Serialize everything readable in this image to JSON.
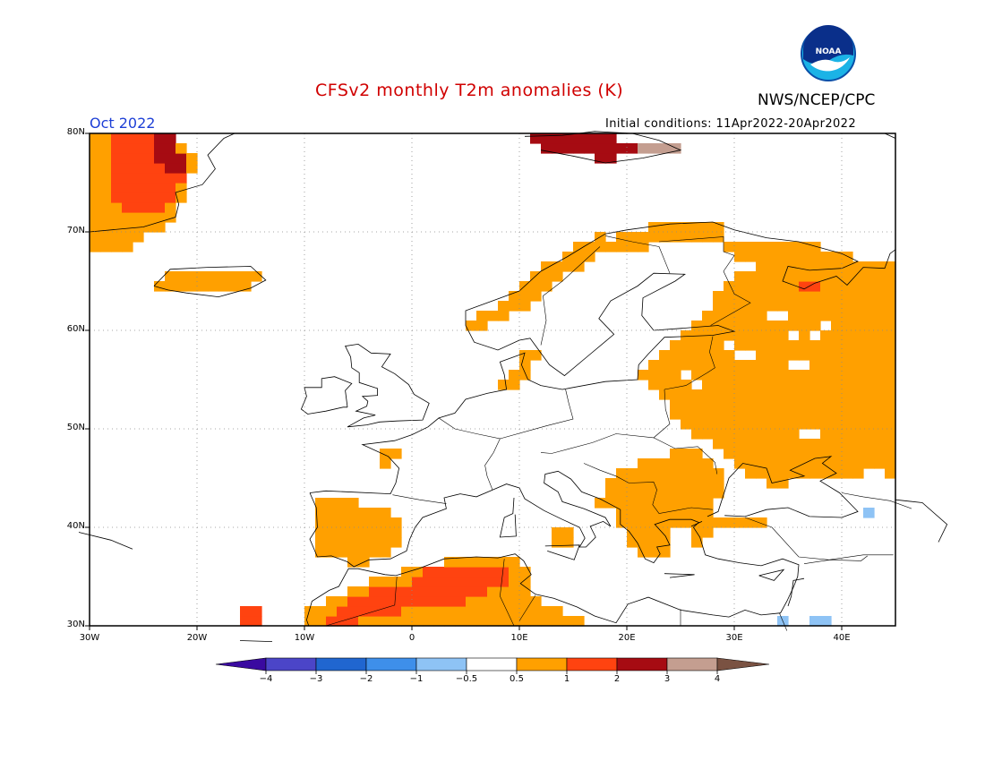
{
  "header": {
    "title": "CFSv2 monthly T2m anomalies (K)",
    "agency": "NWS/NCEP/CPC",
    "target_month": "Oct 2022",
    "initial_conditions": "Initial conditions: 11Apr2022-20Apr2022"
  },
  "logo": {
    "text": "NOAA"
  },
  "axes": {
    "lon_ticks": [
      "30W",
      "20W",
      "10W",
      "0",
      "10E",
      "20E",
      "30E",
      "40E"
    ],
    "lat_ticks": [
      "30N",
      "40N",
      "50N",
      "60N",
      "70N",
      "80N"
    ],
    "lon_range": [
      -30,
      45
    ],
    "lat_range": [
      30,
      80
    ]
  },
  "colorbar": {
    "labels": [
      "−4",
      "−3",
      "−2",
      "−1",
      "−0.5",
      "0.5",
      "1",
      "2",
      "3",
      "4"
    ],
    "colors": [
      "#3a0aa0",
      "#4b45c8",
      "#2066d0",
      "#3e8fea",
      "#8ec3f5",
      "#ffffff",
      "#ffa000",
      "#ff4310",
      "#a60b12",
      "#c49e90",
      "#7a5242"
    ]
  },
  "anomaly_colors": {
    "warm1": "#ffa000",
    "warm2": "#ff4310",
    "warm3": "#a60b12",
    "warm4": "#c49e90",
    "cool1": "#8ec3f5"
  }
}
